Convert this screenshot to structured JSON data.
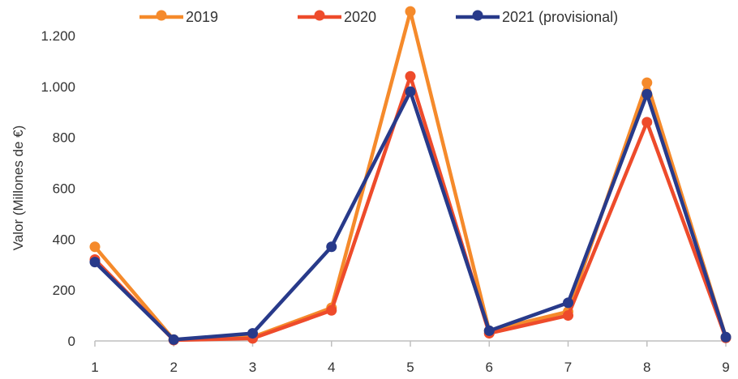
{
  "chart_data": {
    "type": "line",
    "title": "",
    "xlabel": "",
    "ylabel": "Valor (Millones de €)",
    "x": [
      1,
      2,
      3,
      4,
      5,
      6,
      7,
      8,
      9
    ],
    "x_tick_labels": [
      "1",
      "2",
      "3",
      "4",
      "5",
      "6",
      "7",
      "8",
      "9"
    ],
    "ylim": [
      0,
      1300
    ],
    "y_ticks": [
      0,
      200,
      400,
      600,
      800,
      1000,
      1200
    ],
    "y_tick_labels": [
      "0",
      "200",
      "400",
      "600",
      "800",
      "1.000",
      "1.200"
    ],
    "grid": false,
    "legend_position": "top-center",
    "series": [
      {
        "name": "2019",
        "color": "#F58A2B",
        "values": [
          370,
          5,
          15,
          130,
          1295,
          40,
          115,
          1015,
          15
        ]
      },
      {
        "name": "2020",
        "color": "#EE4B2B",
        "values": [
          320,
          3,
          10,
          120,
          1040,
          30,
          100,
          860,
          12
        ]
      },
      {
        "name": "2021 (provisional)",
        "color": "#283A8A",
        "values": [
          310,
          5,
          30,
          370,
          980,
          40,
          150,
          970,
          15
        ]
      }
    ]
  }
}
